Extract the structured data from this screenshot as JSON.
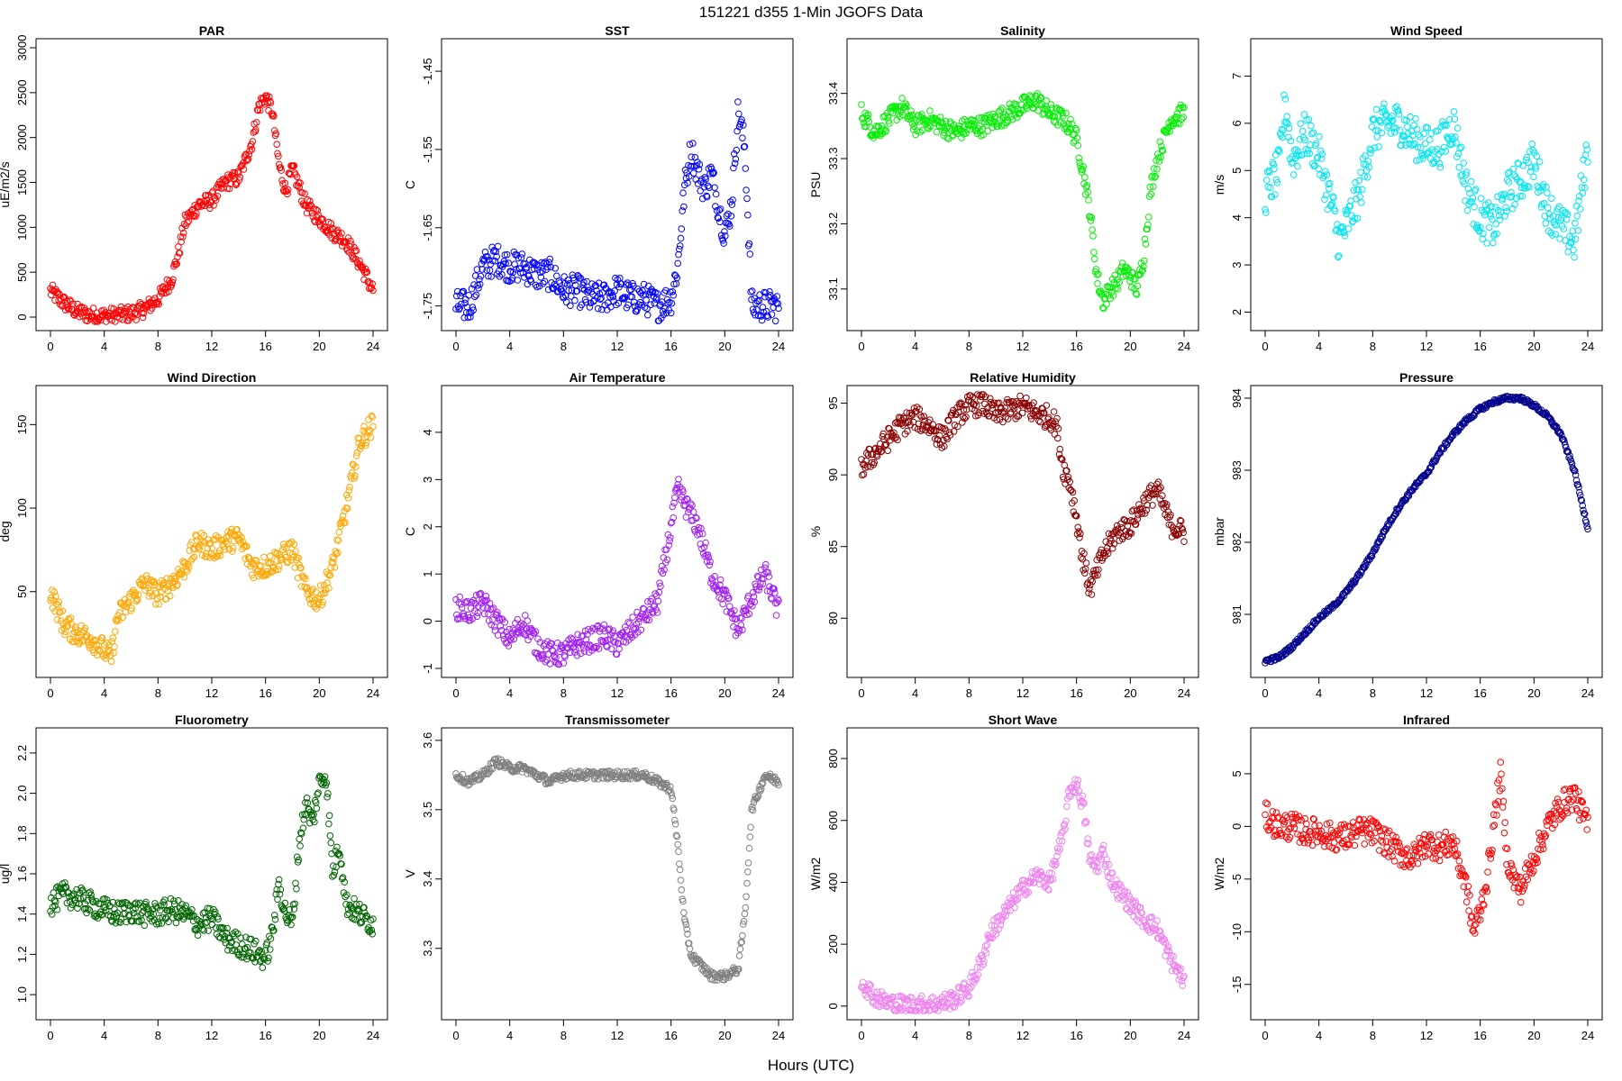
{
  "figure": {
    "title": "151221    d355    1-Min   JGOFS Data",
    "xlabel": "Hours (UTC)"
  },
  "chart_data": [
    {
      "type": "scatter",
      "title": "PAR",
      "ylabel": "uE/m2/s",
      "color": "#ff0000",
      "xlim": [
        0,
        24
      ],
      "ylim": [
        -50,
        3000
      ],
      "xticks": [
        0,
        4,
        8,
        12,
        16,
        20,
        24
      ],
      "xtick_labels": [
        "0",
        "4",
        "8",
        "12",
        "16",
        "20",
        "24"
      ],
      "yticks": [
        0,
        500,
        1000,
        1500,
        2000,
        2500,
        3000
      ],
      "ytick_labels": [
        "0",
        "500",
        "1000",
        "1500",
        "2000",
        "2500",
        "3000"
      ],
      "x": [
        0,
        1,
        2,
        3,
        4,
        5,
        6,
        7,
        8,
        9,
        9.5,
        10,
        11,
        12,
        13,
        14,
        15,
        15.5,
        16,
        16.5,
        17,
        17.5,
        18,
        19,
        20,
        21,
        22,
        23,
        24
      ],
      "y": [
        290,
        160,
        60,
        20,
        15,
        20,
        40,
        90,
        200,
        420,
        700,
        1050,
        1250,
        1300,
        1500,
        1550,
        1950,
        2350,
        2450,
        2300,
        1700,
        1400,
        1650,
        1250,
        1100,
        950,
        850,
        600,
        300
      ],
      "noise": 90
    },
    {
      "type": "scatter",
      "title": "SST",
      "ylabel": "C",
      "color": "#0000ff",
      "xlim": [
        0,
        24
      ],
      "ylim": [
        -1.77,
        -1.42
      ],
      "xticks": [
        0,
        4,
        8,
        12,
        16,
        20,
        24
      ],
      "xtick_labels": [
        "0",
        "4",
        "8",
        "12",
        "16",
        "20",
        "24"
      ],
      "yticks": [
        -1.75,
        -1.65,
        -1.55,
        -1.45
      ],
      "ytick_labels": [
        "-1.75",
        "-1.65",
        "-1.55",
        "-1.45"
      ],
      "x": [
        0,
        1,
        2,
        3,
        4,
        5,
        6,
        7,
        8,
        9,
        10,
        11,
        12,
        13,
        14,
        15,
        16,
        16.5,
        17,
        17.5,
        18,
        18.5,
        19,
        19.5,
        20,
        20.5,
        21,
        21.5,
        22,
        23,
        24
      ],
      "y": [
        -1.75,
        -1.75,
        -1.7,
        -1.69,
        -1.7,
        -1.7,
        -1.71,
        -1.71,
        -1.73,
        -1.73,
        -1.74,
        -1.74,
        -1.73,
        -1.74,
        -1.74,
        -1.75,
        -1.74,
        -1.7,
        -1.6,
        -1.55,
        -1.58,
        -1.6,
        -1.58,
        -1.62,
        -1.66,
        -1.62,
        -1.5,
        -1.55,
        -1.75,
        -1.75,
        -1.75
      ],
      "noise": 0.02
    },
    {
      "type": "scatter",
      "title": "Salinity",
      "ylabel": "PSU",
      "color": "#00ee00",
      "xlim": [
        0,
        24
      ],
      "ylim": [
        33.05,
        33.47
      ],
      "xticks": [
        0,
        4,
        8,
        12,
        16,
        20,
        24
      ],
      "xtick_labels": [
        "0",
        "4",
        "8",
        "12",
        "16",
        "20",
        "24"
      ],
      "yticks": [
        33.1,
        33.2,
        33.3,
        33.4
      ],
      "ytick_labels": [
        "33.1",
        "33.2",
        "33.3",
        "33.4"
      ],
      "x": [
        0,
        1,
        2,
        3,
        4,
        5,
        6,
        7,
        8,
        9,
        10,
        11,
        12,
        13,
        14,
        15,
        15.5,
        16,
        16.5,
        17,
        17.5,
        18,
        18.5,
        19,
        19.5,
        20,
        20.5,
        21,
        21.5,
        22,
        23,
        24
      ],
      "y": [
        33.37,
        33.34,
        33.36,
        33.38,
        33.35,
        33.36,
        33.35,
        33.34,
        33.35,
        33.35,
        33.36,
        33.37,
        33.38,
        33.39,
        33.37,
        33.36,
        33.35,
        33.33,
        33.28,
        33.22,
        33.12,
        33.08,
        33.1,
        33.11,
        33.13,
        33.12,
        33.1,
        33.15,
        33.25,
        33.3,
        33.36,
        33.37
      ],
      "noise": 0.015
    },
    {
      "type": "scatter",
      "title": "Wind Speed",
      "ylabel": "m/s",
      "color": "#00e5ee",
      "xlim": [
        0,
        24
      ],
      "ylim": [
        1.8,
        7.6
      ],
      "xticks": [
        0,
        4,
        8,
        12,
        16,
        20,
        24
      ],
      "xtick_labels": [
        "0",
        "4",
        "8",
        "12",
        "16",
        "20",
        "24"
      ],
      "yticks": [
        2,
        3,
        4,
        5,
        6,
        7
      ],
      "ytick_labels": [
        "2",
        "3",
        "4",
        "5",
        "6",
        "7"
      ],
      "x": [
        0,
        1,
        1.5,
        2,
        3,
        4,
        5,
        5.5,
        6,
        7,
        8,
        9,
        10,
        11,
        12,
        13,
        14,
        15,
        16,
        17,
        18,
        19,
        20,
        21,
        22,
        23,
        24
      ],
      "y": [
        4.5,
        5.0,
        6.5,
        5.2,
        5.8,
        5.3,
        4.2,
        3.5,
        3.8,
        4.5,
        5.8,
        6.0,
        6.0,
        5.7,
        5.5,
        5.5,
        6.0,
        4.6,
        4.0,
        3.8,
        4.5,
        4.8,
        5.2,
        4.2,
        3.8,
        3.5,
        5.5
      ],
      "noise": 0.45
    },
    {
      "type": "scatter",
      "title": "Wind Direction",
      "ylabel": "deg",
      "color": "#ffa500",
      "xlim": [
        0,
        24
      ],
      "ylim": [
        4,
        168
      ],
      "xticks": [
        0,
        4,
        8,
        12,
        16,
        20,
        24
      ],
      "xtick_labels": [
        "0",
        "4",
        "8",
        "12",
        "16",
        "20",
        "24"
      ],
      "yticks": [
        50,
        100,
        150
      ],
      "ytick_labels": [
        "50",
        "100",
        "150"
      ],
      "x": [
        0,
        1,
        2,
        3,
        4,
        4.5,
        5,
        6,
        7,
        8,
        9,
        10,
        11,
        12,
        13,
        14,
        15,
        16,
        17,
        18,
        19,
        20,
        21,
        22,
        23,
        24
      ],
      "y": [
        50,
        30,
        25,
        22,
        15,
        10,
        35,
        45,
        55,
        48,
        55,
        65,
        80,
        75,
        80,
        82,
        65,
        65,
        70,
        75,
        50,
        45,
        65,
        100,
        140,
        150
      ],
      "noise": 7
    },
    {
      "type": "scatter",
      "title": "Air Temperature",
      "ylabel": "C",
      "color": "#a020f0",
      "xlim": [
        0,
        24
      ],
      "ylim": [
        -1,
        4.8
      ],
      "xticks": [
        0,
        4,
        8,
        12,
        16,
        20,
        24
      ],
      "xtick_labels": [
        "0",
        "4",
        "8",
        "12",
        "16",
        "20",
        "24"
      ],
      "yticks": [
        -1,
        0,
        1,
        2,
        3,
        4
      ],
      "ytick_labels": [
        "-1",
        "0",
        "1",
        "2",
        "3",
        "4"
      ],
      "x": [
        0,
        1,
        2,
        3,
        4,
        5,
        6,
        7,
        8,
        9,
        10,
        11,
        12,
        13,
        14,
        15,
        16,
        16.5,
        17,
        18,
        19,
        20,
        21,
        22,
        23,
        24
      ],
      "y": [
        0.3,
        0.2,
        0.4,
        0.0,
        -0.4,
        0.0,
        -0.5,
        -0.7,
        -0.7,
        -0.5,
        -0.4,
        -0.3,
        -0.5,
        -0.2,
        0.1,
        0.4,
        2.0,
        2.8,
        2.5,
        2.0,
        1.0,
        0.5,
        -0.2,
        0.5,
        1.0,
        0.2
      ],
      "noise": 0.25
    },
    {
      "type": "scatter",
      "title": "Relative Humidity",
      "ylabel": "%",
      "color": "#8b0000",
      "xlim": [
        0,
        24
      ],
      "ylim": [
        76.5,
        95.6
      ],
      "xticks": [
        0,
        4,
        8,
        12,
        16,
        20,
        24
      ],
      "xtick_labels": [
        "0",
        "4",
        "8",
        "12",
        "16",
        "20",
        "24"
      ],
      "yticks": [
        80,
        85,
        90,
        95
      ],
      "ytick_labels": [
        "80",
        "85",
        "90",
        "95"
      ],
      "x": [
        0,
        1,
        2,
        3,
        4,
        5,
        6,
        7,
        8,
        9,
        10,
        11,
        12,
        13,
        14,
        14.5,
        15,
        15.5,
        16,
        16.5,
        17,
        18,
        19,
        20,
        21,
        22,
        23,
        24
      ],
      "y": [
        90.5,
        91.5,
        92.5,
        93.5,
        94.0,
        93.5,
        92.5,
        94.0,
        94.8,
        95.0,
        94.2,
        94.5,
        94.8,
        94.3,
        94.0,
        93.5,
        90.5,
        89.5,
        87.0,
        84.0,
        82.0,
        84.5,
        86.0,
        86.5,
        88.0,
        89.0,
        86.5,
        86.0
      ],
      "noise": 0.8
    },
    {
      "type": "scatter",
      "title": "Pressure",
      "ylabel": "mbar",
      "color": "#00008b",
      "xlim": [
        0,
        24
      ],
      "ylim": [
        980.25,
        984.05
      ],
      "xticks": [
        0,
        4,
        8,
        12,
        16,
        20,
        24
      ],
      "xtick_labels": [
        "0",
        "4",
        "8",
        "12",
        "16",
        "20",
        "24"
      ],
      "yticks": [
        981,
        982,
        983,
        984
      ],
      "ytick_labels": [
        "981",
        "982",
        "983",
        "984"
      ],
      "x": [
        0,
        1,
        2,
        3,
        4,
        5,
        6,
        7,
        8,
        9,
        10,
        11,
        12,
        13,
        14,
        15,
        16,
        17,
        18,
        19,
        20,
        21,
        22,
        23,
        24
      ],
      "y": [
        980.35,
        980.4,
        980.55,
        980.75,
        980.95,
        981.1,
        981.3,
        981.55,
        981.85,
        982.2,
        982.5,
        982.75,
        982.95,
        983.25,
        983.5,
        983.7,
        983.85,
        983.95,
        984.0,
        984.0,
        983.9,
        983.75,
        983.5,
        983.0,
        982.2
      ],
      "noise": 0.03
    },
    {
      "type": "scatter",
      "title": "Fluorometry",
      "ylabel": "ug/l",
      "color": "#006400",
      "xlim": [
        0,
        24
      ],
      "ylim": [
        0.92,
        2.28
      ],
      "xticks": [
        0,
        4,
        8,
        12,
        16,
        20,
        24
      ],
      "xtick_labels": [
        "0",
        "4",
        "8",
        "12",
        "16",
        "20",
        "24"
      ],
      "yticks": [
        1.0,
        1.2,
        1.4,
        1.6,
        1.8,
        2.0,
        2.2
      ],
      "ytick_labels": [
        "1.0",
        "1.2",
        "1.4",
        "1.6",
        "1.8",
        "2.0",
        "2.2"
      ],
      "x": [
        0,
        1,
        2,
        3,
        4,
        5,
        6,
        7,
        8,
        9,
        10,
        11,
        12,
        13,
        14,
        15,
        16,
        16.5,
        17,
        17.5,
        18,
        18.5,
        19,
        19.5,
        20,
        20.5,
        21,
        21.5,
        22,
        23,
        24
      ],
      "y": [
        1.45,
        1.5,
        1.48,
        1.45,
        1.42,
        1.4,
        1.42,
        1.4,
        1.4,
        1.42,
        1.4,
        1.35,
        1.38,
        1.28,
        1.25,
        1.22,
        1.18,
        1.3,
        1.55,
        1.4,
        1.35,
        1.75,
        1.95,
        1.85,
        2.05,
        2.1,
        1.6,
        1.75,
        1.45,
        1.4,
        1.35
      ],
      "noise": 0.06
    },
    {
      "type": "scatter",
      "title": "Transmissometer",
      "ylabel": "V",
      "color": "#808080",
      "xlim": [
        0,
        24
      ],
      "ylim": [
        3.21,
        3.605
      ],
      "xticks": [
        0,
        4,
        8,
        12,
        16,
        20,
        24
      ],
      "xtick_labels": [
        "0",
        "4",
        "8",
        "12",
        "16",
        "20",
        "24"
      ],
      "yticks": [
        3.3,
        3.4,
        3.5,
        3.6
      ],
      "ytick_labels": [
        "3.3",
        "3.4",
        "3.5",
        "3.6"
      ],
      "x": [
        0,
        1,
        2,
        3,
        4,
        5,
        6,
        7,
        8,
        9,
        10,
        11,
        12,
        13,
        14,
        15,
        16,
        16.5,
        17,
        17.5,
        18,
        19,
        20,
        21,
        21.5,
        22,
        23,
        24
      ],
      "y": [
        3.55,
        3.54,
        3.55,
        3.57,
        3.56,
        3.56,
        3.55,
        3.54,
        3.55,
        3.55,
        3.55,
        3.55,
        3.55,
        3.55,
        3.55,
        3.54,
        3.53,
        3.45,
        3.34,
        3.29,
        3.28,
        3.26,
        3.26,
        3.27,
        3.35,
        3.5,
        3.55,
        3.54
      ],
      "noise": 0.006
    },
    {
      "type": "scatter",
      "title": "Short Wave",
      "ylabel": "W/m2",
      "color": "#ee82ee",
      "xlim": [
        0,
        24
      ],
      "ylim": [
        -15,
        870
      ],
      "xticks": [
        0,
        4,
        8,
        12,
        16,
        20,
        24
      ],
      "xtick_labels": [
        "0",
        "4",
        "8",
        "12",
        "16",
        "20",
        "24"
      ],
      "yticks": [
        0,
        200,
        400,
        600,
        800
      ],
      "ytick_labels": [
        "0",
        "200",
        "400",
        "600",
        "800"
      ],
      "x": [
        0,
        1,
        2,
        3,
        4,
        5,
        6,
        7,
        8,
        9,
        9.5,
        10,
        11,
        12,
        13,
        14,
        15,
        15.5,
        16,
        16.5,
        17,
        17.5,
        18,
        18.5,
        19,
        20,
        21,
        22,
        23,
        24
      ],
      "y": [
        80,
        30,
        10,
        5,
        5,
        5,
        10,
        25,
        60,
        150,
        230,
        260,
        320,
        380,
        420,
        400,
        550,
        700,
        720,
        650,
        470,
        450,
        500,
        420,
        380,
        330,
        280,
        250,
        150,
        80
      ],
      "noise": 30
    },
    {
      "type": "scatter",
      "title": "Infrared",
      "ylabel": "W/m2",
      "color": "#ff0000",
      "xlim": [
        0,
        24
      ],
      "ylim": [
        -17.5,
        8.5
      ],
      "xticks": [
        0,
        4,
        8,
        12,
        16,
        20,
        24
      ],
      "xtick_labels": [
        "0",
        "4",
        "8",
        "12",
        "16",
        "20",
        "24"
      ],
      "yticks": [
        -15,
        -10,
        -5,
        0,
        5
      ],
      "ytick_labels": [
        "-15",
        "-10",
        "-5",
        "0",
        "5"
      ],
      "x": [
        0,
        1,
        2,
        3,
        4,
        5,
        6,
        7,
        8,
        9,
        10,
        11,
        12,
        13,
        14,
        15,
        15.5,
        16,
        16.5,
        17,
        17.5,
        18,
        18.5,
        19,
        20,
        21,
        22,
        23,
        24
      ],
      "y": [
        1,
        0,
        0,
        -0.5,
        -0.5,
        -1,
        -1,
        -0.5,
        -0.5,
        -1.5,
        -2.5,
        -3,
        -1.5,
        -2,
        -1.5,
        -6,
        -10,
        -8,
        -5,
        0,
        5,
        -3,
        -5,
        -6,
        -3,
        0,
        2,
        3,
        0
      ],
      "noise": 1.3
    }
  ]
}
